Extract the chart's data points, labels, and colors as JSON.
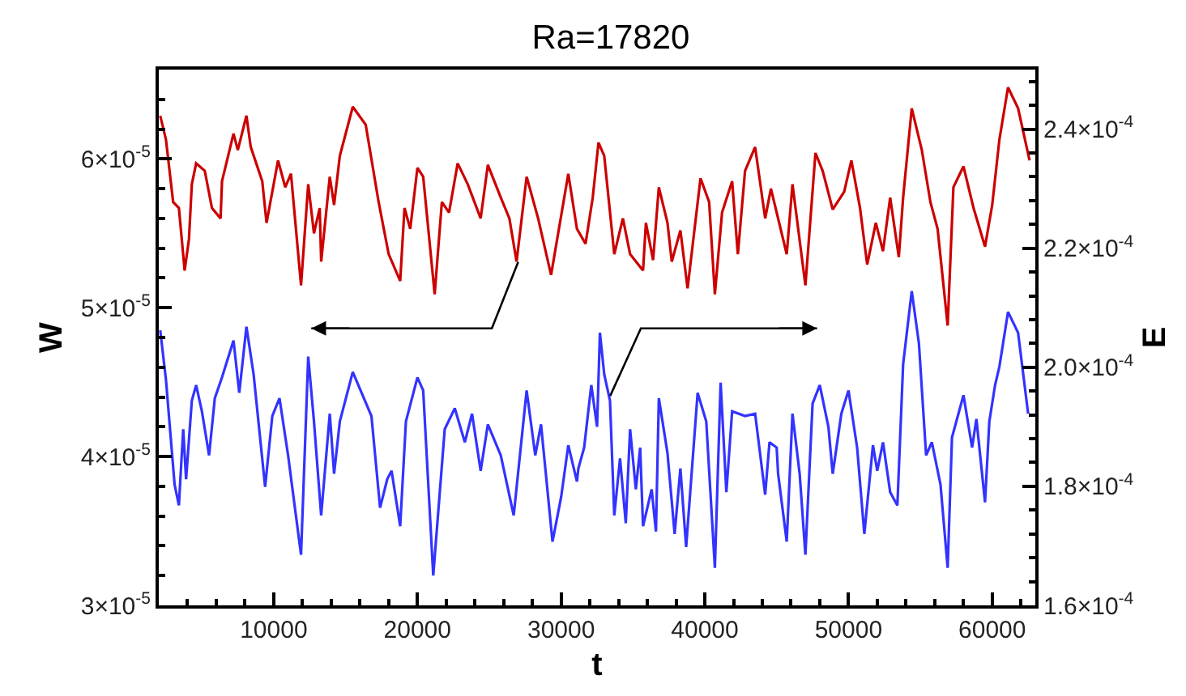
{
  "chart_data": {
    "type": "line",
    "title": "Ra=17820",
    "xlabel": "t",
    "ylabel": "W",
    "y2label": "E",
    "xlim": [
      2000,
      63000
    ],
    "xticks": [
      {
        "value": 2000,
        "label": null
      },
      {
        "value": 4000,
        "label": null
      },
      {
        "value": 6000,
        "label": null
      },
      {
        "value": 8000,
        "label": null
      },
      10000,
      {
        "value": 12000,
        "label": null
      },
      {
        "value": 14000,
        "label": null
      },
      {
        "value": 16000,
        "label": null
      },
      {
        "value": 18000,
        "label": null
      },
      20000,
      {
        "value": 22000,
        "label": null
      },
      {
        "value": 24000,
        "label": null
      },
      {
        "value": 26000,
        "label": null
      },
      {
        "value": 28000,
        "label": null
      },
      30000,
      {
        "value": 32000,
        "label": null
      },
      {
        "value": 34000,
        "label": null
      },
      {
        "value": 36000,
        "label": null
      },
      {
        "value": 38000,
        "label": null
      },
      40000,
      {
        "value": 42000,
        "label": null
      },
      {
        "value": 44000,
        "label": null
      },
      {
        "value": 46000,
        "label": null
      },
      {
        "value": 48000,
        "label": null
      },
      50000,
      {
        "value": 52000,
        "label": null
      },
      {
        "value": 54000,
        "label": null
      },
      {
        "value": 56000,
        "label": null
      },
      {
        "value": 58000,
        "label": null
      },
      60000,
      {
        "value": 62000,
        "label": null
      }
    ],
    "ylim": [
      3e-05,
      6.6e-05
    ],
    "yticks": [
      {
        "value": 3e-05,
        "label": "3×10$^{-5}$"
      },
      {
        "value": 3.2e-05,
        "label": null
      },
      {
        "value": 3.4e-05,
        "label": null
      },
      {
        "value": 3.6e-05,
        "label": null
      },
      {
        "value": 3.8e-05,
        "label": null
      },
      {
        "value": 4e-05,
        "label": "4×10$^{-5}$"
      },
      {
        "value": 4.2e-05,
        "label": null
      },
      {
        "value": 4.4e-05,
        "label": null
      },
      {
        "value": 4.6e-05,
        "label": null
      },
      {
        "value": 4.8e-05,
        "label": null
      },
      {
        "value": 5e-05,
        "label": "5×10$^{-5}$"
      },
      {
        "value": 5.2e-05,
        "label": null
      },
      {
        "value": 5.4e-05,
        "label": null
      },
      {
        "value": 5.6e-05,
        "label": null
      },
      {
        "value": 5.8e-05,
        "label": null
      },
      {
        "value": 6e-05,
        "label": "6×10$^{-5}$"
      },
      {
        "value": 6.2e-05,
        "label": null
      },
      {
        "value": 6.4e-05,
        "label": null
      },
      {
        "value": 6.6e-05,
        "label": null
      }
    ],
    "y2lim": [
      0.00016,
      0.00025
    ],
    "y2ticks": [
      {
        "value": 0.00016,
        "label": "1.6×10$^{-4}$"
      },
      {
        "value": 0.000164,
        "label": null
      },
      {
        "value": 0.000168,
        "label": null
      },
      {
        "value": 0.000172,
        "label": null
      },
      {
        "value": 0.000176,
        "label": null
      },
      {
        "value": 0.00018,
        "label": "1.8×10$^{-4}$"
      },
      {
        "value": 0.000184,
        "label": null
      },
      {
        "value": 0.000188,
        "label": null
      },
      {
        "value": 0.000192,
        "label": null
      },
      {
        "value": 0.000196,
        "label": null
      },
      {
        "value": 0.0002,
        "label": "2.0×10$^{-4}$"
      },
      {
        "value": 0.000204,
        "label": null
      },
      {
        "value": 0.000208,
        "label": null
      },
      {
        "value": 0.000212,
        "label": null
      },
      {
        "value": 0.000216,
        "label": null
      },
      {
        "value": 0.00022,
        "label": "2.2×10$^{-4}$"
      },
      {
        "value": 0.000224,
        "label": null
      },
      {
        "value": 0.000228,
        "label": null
      },
      {
        "value": 0.000232,
        "label": null
      },
      {
        "value": 0.000236,
        "label": null
      },
      {
        "value": 0.00024,
        "label": "2.4×10$^{-4}$"
      },
      {
        "value": 0.000244,
        "label": null
      },
      {
        "value": 0.000248,
        "label": null
      }
    ],
    "marker": "none",
    "line_style": "solid",
    "series": [
      {
        "color": "#cc0000",
        "axis": "y",
        "x": [
          2100,
          2500,
          3000,
          3400,
          3800,
          4100,
          4300,
          4600,
          5200,
          5700,
          6300,
          6400,
          7200,
          7500,
          8100,
          8400,
          9200,
          9500,
          10300,
          10800,
          11200,
          11900,
          12400,
          12800,
          13200,
          13300,
          13900,
          14200,
          14600,
          15500,
          16400,
          17300,
          18000,
          18800,
          19100,
          19500,
          20000,
          20400,
          21200,
          21700,
          22200,
          22800,
          23500,
          24400,
          24900,
          25800,
          26400,
          26900,
          27600,
          28400,
          29300,
          30500,
          31100,
          31700,
          32200,
          32600,
          33000,
          33700,
          34300,
          34800,
          35700,
          35900,
          36400,
          36800,
          37400,
          37700,
          38300,
          38800,
          39700,
          40300,
          40700,
          41200,
          41900,
          42300,
          42800,
          43500,
          44200,
          44600,
          45700,
          46100,
          47000,
          47700,
          48200,
          48900,
          49700,
          50200,
          50800,
          51300,
          51900,
          52400,
          52900,
          53500,
          53800,
          54400,
          55100,
          55700,
          56200,
          56900,
          57300,
          58000,
          58700,
          59500,
          60000,
          60500,
          61100,
          61800,
          62600
        ],
        "values": [
          6.29e-05,
          6.13e-05,
          5.71e-05,
          5.67e-05,
          5.25e-05,
          5.46e-05,
          5.83e-05,
          5.97e-05,
          5.92e-05,
          5.67e-05,
          5.6e-05,
          5.85e-05,
          6.17e-05,
          6.06e-05,
          6.29e-05,
          6.08e-05,
          5.85e-05,
          5.57e-05,
          5.99e-05,
          5.81e-05,
          5.9e-05,
          5.15e-05,
          5.83e-05,
          5.5e-05,
          5.67e-05,
          5.31e-05,
          5.88e-05,
          5.69e-05,
          6.02e-05,
          6.35e-05,
          6.23e-05,
          5.71e-05,
          5.36e-05,
          5.18e-05,
          5.67e-05,
          5.53e-05,
          5.94e-05,
          5.88e-05,
          5.09e-05,
          5.71e-05,
          5.64e-05,
          5.97e-05,
          5.83e-05,
          5.6e-05,
          5.96e-05,
          5.74e-05,
          5.6e-05,
          5.31e-05,
          5.88e-05,
          5.6e-05,
          5.22e-05,
          5.9e-05,
          5.53e-05,
          5.43e-05,
          5.74e-05,
          6.11e-05,
          6.02e-05,
          5.36e-05,
          5.6e-05,
          5.36e-05,
          5.25e-05,
          5.57e-05,
          5.32e-05,
          5.81e-05,
          5.57e-05,
          5.31e-05,
          5.52e-05,
          5.13e-05,
          5.87e-05,
          5.71e-05,
          5.09e-05,
          5.64e-05,
          5.85e-05,
          5.36e-05,
          5.92e-05,
          6.08e-05,
          5.6e-05,
          5.8e-05,
          5.36e-05,
          5.83e-05,
          5.15e-05,
          6.04e-05,
          5.92e-05,
          5.66e-05,
          5.78e-05,
          5.99e-05,
          5.67e-05,
          5.29e-05,
          5.57e-05,
          5.38e-05,
          5.74e-05,
          5.34e-05,
          5.74e-05,
          6.34e-05,
          6.06e-05,
          5.71e-05,
          5.53e-05,
          4.88e-05,
          5.81e-05,
          5.95e-05,
          5.67e-05,
          5.41e-05,
          5.69e-05,
          6.13e-05,
          6.48e-05,
          6.34e-05,
          5.99e-05
        ]
      },
      {
        "color": "#3333ff",
        "axis": "y2",
        "x": [
          2100,
          2500,
          3100,
          3400,
          3700,
          3900,
          4300,
          4600,
          5000,
          5500,
          5900,
          6400,
          7200,
          7600,
          8100,
          8600,
          9400,
          9900,
          10400,
          11000,
          11900,
          12400,
          12800,
          13300,
          13900,
          14200,
          14600,
          15500,
          16800,
          17400,
          17900,
          18200,
          18800,
          19200,
          20000,
          20400,
          21100,
          21900,
          22600,
          23300,
          23800,
          24400,
          24900,
          25800,
          26700,
          27600,
          28200,
          28600,
          29400,
          30000,
          30500,
          31100,
          31200,
          31600,
          32100,
          32500,
          32700,
          33000,
          33400,
          33700,
          34100,
          34500,
          34800,
          35200,
          35500,
          35700,
          36300,
          36600,
          36800,
          37400,
          37900,
          38300,
          38700,
          39500,
          40100,
          40700,
          41100,
          41500,
          41900,
          42800,
          43500,
          44200,
          44500,
          45000,
          45100,
          45700,
          46100,
          46600,
          47000,
          47500,
          48000,
          48600,
          48900,
          49500,
          50000,
          50600,
          51100,
          51700,
          52000,
          52400,
          52900,
          53400,
          53800,
          54400,
          54900,
          55400,
          55800,
          56400,
          56900,
          57200,
          58000,
          58600,
          58900,
          59500,
          59800,
          60200,
          60500,
          61100,
          61800,
          62500
        ],
        "values": [
          0.0002062,
          0.0001979,
          0.0001803,
          0.0001768,
          0.0001896,
          0.0001812,
          0.0001944,
          0.000197,
          0.0001926,
          0.0001852,
          0.0001948,
          0.0001983,
          0.0002045,
          0.0001957,
          0.0002068,
          0.0001988,
          0.0001799,
          0.0001918,
          0.0001948,
          0.0001852,
          0.0001685,
          0.0002018,
          0.0001909,
          0.0001751,
          0.0001922,
          0.0001821,
          0.0001909,
          0.0001992,
          0.0001918,
          0.0001764,
          0.0001812,
          0.0001826,
          0.0001733,
          0.0001909,
          0.0001983,
          0.0001961,
          0.000165,
          0.0001896,
          0.0001931,
          0.0001874,
          0.0001922,
          0.0001826,
          0.0001904,
          0.0001852,
          0.0001751,
          0.0001961,
          0.0001852,
          0.0001904,
          0.0001707,
          0.0001782,
          0.0001869,
          0.0001808,
          0.000183,
          0.0001865,
          0.000197,
          0.00019,
          0.0002058,
          0.0001988,
          0.0001944,
          0.0001751,
          0.0001847,
          0.0001738,
          0.0001896,
          0.0001795,
          0.0001865,
          0.0001733,
          0.0001795,
          0.0001724,
          0.0001948,
          0.0001856,
          0.000172,
          0.000183,
          0.0001698,
          0.0001957,
          0.0001909,
          0.0001663,
          0.0001974,
          0.000179,
          0.0001926,
          0.0001918,
          0.0001922,
          0.0001786,
          0.0001874,
          0.0001865,
          0.0001821,
          0.0001707,
          0.0001922,
          0.0001821,
          0.0001685,
          0.0001939,
          0.000197,
          0.00019,
          0.0001821,
          0.0001922,
          0.0001961,
          0.0001865,
          0.000172,
          0.0001869,
          0.0001826,
          0.0001874,
          0.000179,
          0.0001768,
          0.0002005,
          0.0002128,
          0.000204,
          0.0001852,
          0.0001874,
          0.0001803,
          0.0001663,
          0.0001882,
          0.0001953,
          0.0001865,
          0.0001913,
          0.0001773,
          0.0001909,
          0.000197,
          0.0002001,
          0.0002093,
          0.0002058,
          0.0001922
        ]
      }
    ]
  }
}
